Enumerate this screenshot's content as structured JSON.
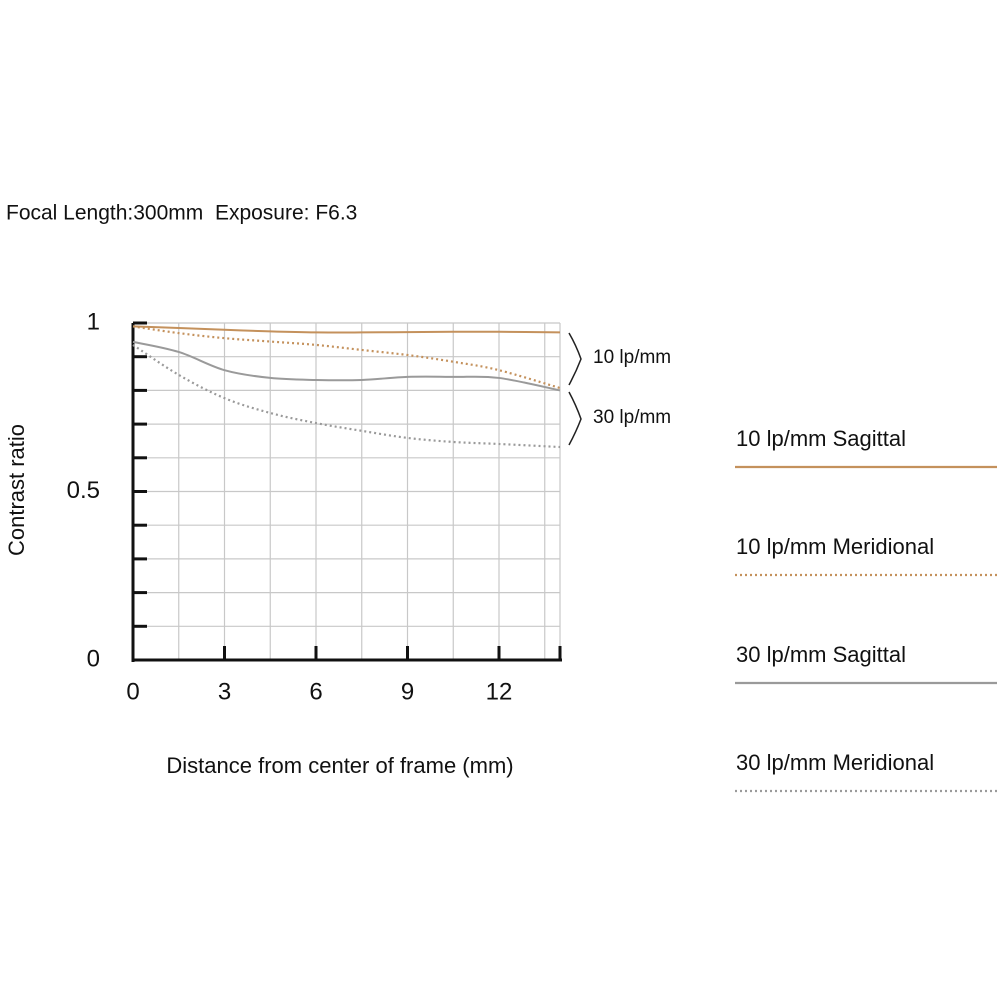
{
  "chart_data": {
    "type": "line",
    "title": "Focal Length:300mm  Exposure: F6.3",
    "x_label": "Distance from center of frame (mm)",
    "y_label": "Contrast ratio",
    "x": [
      0,
      1.5,
      3,
      4.5,
      6,
      7.5,
      9,
      10.5,
      12,
      14
    ],
    "series": [
      {
        "name": "10 lp/mm Sagittal",
        "color": "#c4915c",
        "dash": "solid",
        "values": [
          0.99,
          0.985,
          0.98,
          0.975,
          0.972,
          0.972,
          0.973,
          0.974,
          0.974,
          0.972
        ]
      },
      {
        "name": "10 lp/mm Meridional",
        "color": "#c4915c",
        "dash": "dotted",
        "values": [
          0.99,
          0.97,
          0.955,
          0.945,
          0.935,
          0.92,
          0.905,
          0.885,
          0.86,
          0.807
        ]
      },
      {
        "name": "30 lp/mm Sagittal",
        "color": "#9a9a9a",
        "dash": "solid",
        "values": [
          0.944,
          0.914,
          0.86,
          0.837,
          0.831,
          0.831,
          0.84,
          0.84,
          0.837,
          0.8
        ]
      },
      {
        "name": "30 lp/mm Meridional",
        "color": "#9a9a9a",
        "dash": "dotted",
        "values": [
          0.935,
          0.846,
          0.777,
          0.733,
          0.703,
          0.68,
          0.659,
          0.647,
          0.641,
          0.632
        ]
      }
    ],
    "annotations": [
      "10 lp/mm",
      "30 lp/mm"
    ],
    "xlim": [
      0,
      14
    ],
    "ylim": [
      0,
      1
    ],
    "xticks": [
      0,
      3,
      6,
      9,
      12
    ],
    "yticks": [
      0,
      0.5,
      1
    ],
    "xminor_ticks": [
      1.5,
      4.5,
      7.5,
      10.5,
      13.5,
      14
    ],
    "yminor_ticks": [
      0.1,
      0.2,
      0.3,
      0.4,
      0.6,
      0.7,
      0.8,
      0.9
    ],
    "grid": true
  }
}
